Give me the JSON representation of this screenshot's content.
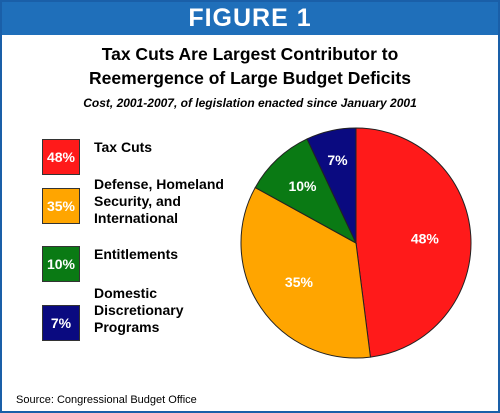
{
  "banner": "FIGURE 1",
  "chart_data": {
    "type": "pie",
    "title": "Tax Cuts Are Largest Contributor to Reemergence of Large Budget Deficits",
    "title_lines": [
      "Tax Cuts Are Largest Contributor to",
      "Reemergence of Large Budget Deficits"
    ],
    "subtitle": "Cost, 2001-2007, of legislation enacted since January 2001",
    "legend_placement": "left",
    "slices": [
      {
        "label_lines": [
          "Tax Cuts"
        ],
        "value": 48,
        "display": "48%",
        "color": "#ff1a1a"
      },
      {
        "label_lines": [
          "Defense, Homeland",
          "Security, and",
          "International"
        ],
        "value": 35,
        "display": "35%",
        "color": "#ffa500"
      },
      {
        "label_lines": [
          "Entitlements"
        ],
        "value": 10,
        "display": "10%",
        "color": "#0a7a14"
      },
      {
        "label_lines": [
          "Domestic",
          "Discretionary",
          "Programs"
        ],
        "value": 7,
        "display": "7%",
        "color": "#0a0a80"
      }
    ]
  },
  "source": "Source: Congressional Budget Office"
}
